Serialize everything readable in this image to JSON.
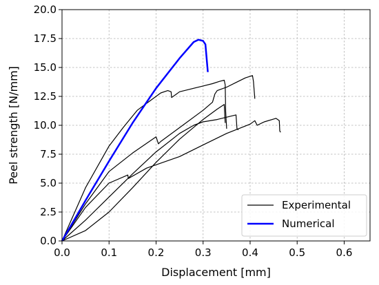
{
  "chart_data": {
    "type": "line",
    "title": "",
    "xlabel": "Displacement [mm]",
    "ylabel": "Peel strength [N/mm]",
    "xlim": [
      0.0,
      0.655
    ],
    "ylim": [
      0.0,
      20.0
    ],
    "xticks": [
      "0.0",
      "0.1",
      "0.2",
      "0.3",
      "0.4",
      "0.5",
      "0.6"
    ],
    "yticks": [
      "0.0",
      "2.5",
      "5.0",
      "7.5",
      "10.0",
      "12.5",
      "15.0",
      "17.5",
      "20.0"
    ],
    "grid": true,
    "legend_position": "lower right",
    "legend": [
      {
        "label": "Experimental",
        "color": "#000000"
      },
      {
        "label": "Numerical",
        "color": "#0000ff"
      }
    ],
    "series": [
      {
        "name": "Experimental",
        "color": "#000000",
        "curves": [
          [
            [
              0,
              0
            ],
            [
              0.05,
              4.6
            ],
            [
              0.1,
              8.2
            ],
            [
              0.13,
              9.8
            ],
            [
              0.14,
              10.3
            ],
            [
              0.16,
              11.3
            ],
            [
              0.19,
              12.2
            ],
            [
              0.2,
              12.5
            ],
            [
              0.21,
              12.8
            ],
            [
              0.225,
              13.0
            ],
            [
              0.232,
              12.9
            ],
            [
              0.233,
              12.4
            ],
            [
              0.25,
              12.9
            ],
            [
              0.27,
              13.1
            ],
            [
              0.3,
              13.4
            ],
            [
              0.32,
              13.6
            ],
            [
              0.335,
              13.8
            ],
            [
              0.345,
              13.9
            ],
            [
              0.347,
              13.5
            ],
            [
              0.348,
              11.2
            ],
            [
              0.35,
              9.7
            ]
          ],
          [
            [
              0,
              0
            ],
            [
              0.05,
              3.2
            ],
            [
              0.1,
              6.0
            ],
            [
              0.15,
              7.6
            ],
            [
              0.2,
              9.0
            ],
            [
              0.205,
              8.4
            ],
            [
              0.21,
              8.6
            ],
            [
              0.25,
              9.8
            ],
            [
              0.3,
              11.3
            ],
            [
              0.32,
              12.0
            ],
            [
              0.325,
              12.7
            ],
            [
              0.33,
              13.0
            ],
            [
              0.35,
              13.3
            ],
            [
              0.37,
              13.7
            ],
            [
              0.39,
              14.1
            ],
            [
              0.405,
              14.3
            ],
            [
              0.407,
              13.8
            ],
            [
              0.41,
              12.3
            ]
          ],
          [
            [
              0,
              0
            ],
            [
              0.05,
              2.9
            ],
            [
              0.1,
              5.0
            ],
            [
              0.14,
              5.7
            ],
            [
              0.141,
              5.4
            ],
            [
              0.18,
              6.3
            ],
            [
              0.25,
              7.3
            ],
            [
              0.3,
              8.3
            ],
            [
              0.35,
              9.3
            ],
            [
              0.4,
              10.1
            ],
            [
              0.41,
              10.4
            ],
            [
              0.415,
              10.0
            ],
            [
              0.43,
              10.3
            ],
            [
              0.455,
              10.6
            ],
            [
              0.462,
              10.4
            ],
            [
              0.463,
              9.5
            ],
            [
              0.465,
              9.4
            ]
          ],
          [
            [
              0,
              0
            ],
            [
              0.05,
              1.8
            ],
            [
              0.1,
              3.8
            ],
            [
              0.15,
              5.8
            ],
            [
              0.2,
              7.7
            ],
            [
              0.25,
              9.3
            ],
            [
              0.28,
              10.0
            ],
            [
              0.3,
              10.3
            ],
            [
              0.33,
              10.5
            ],
            [
              0.36,
              10.8
            ],
            [
              0.37,
              10.9
            ],
            [
              0.372,
              9.7
            ],
            [
              0.375,
              9.6
            ]
          ],
          [
            [
              0,
              0
            ],
            [
              0.05,
              0.9
            ],
            [
              0.1,
              2.5
            ],
            [
              0.15,
              4.6
            ],
            [
              0.2,
              6.8
            ],
            [
              0.25,
              8.8
            ],
            [
              0.3,
              10.5
            ],
            [
              0.33,
              11.4
            ],
            [
              0.345,
              11.8
            ],
            [
              0.347,
              10.2
            ]
          ]
        ]
      },
      {
        "name": "Numerical",
        "color": "#0000ff",
        "points": [
          [
            0,
            0
          ],
          [
            0.05,
            3.5
          ],
          [
            0.1,
            6.9
          ],
          [
            0.15,
            10.2
          ],
          [
            0.2,
            13.2
          ],
          [
            0.25,
            15.8
          ],
          [
            0.28,
            17.2
          ],
          [
            0.29,
            17.4
          ],
          [
            0.3,
            17.3
          ],
          [
            0.305,
            17.0
          ],
          [
            0.31,
            14.6
          ]
        ]
      }
    ]
  }
}
